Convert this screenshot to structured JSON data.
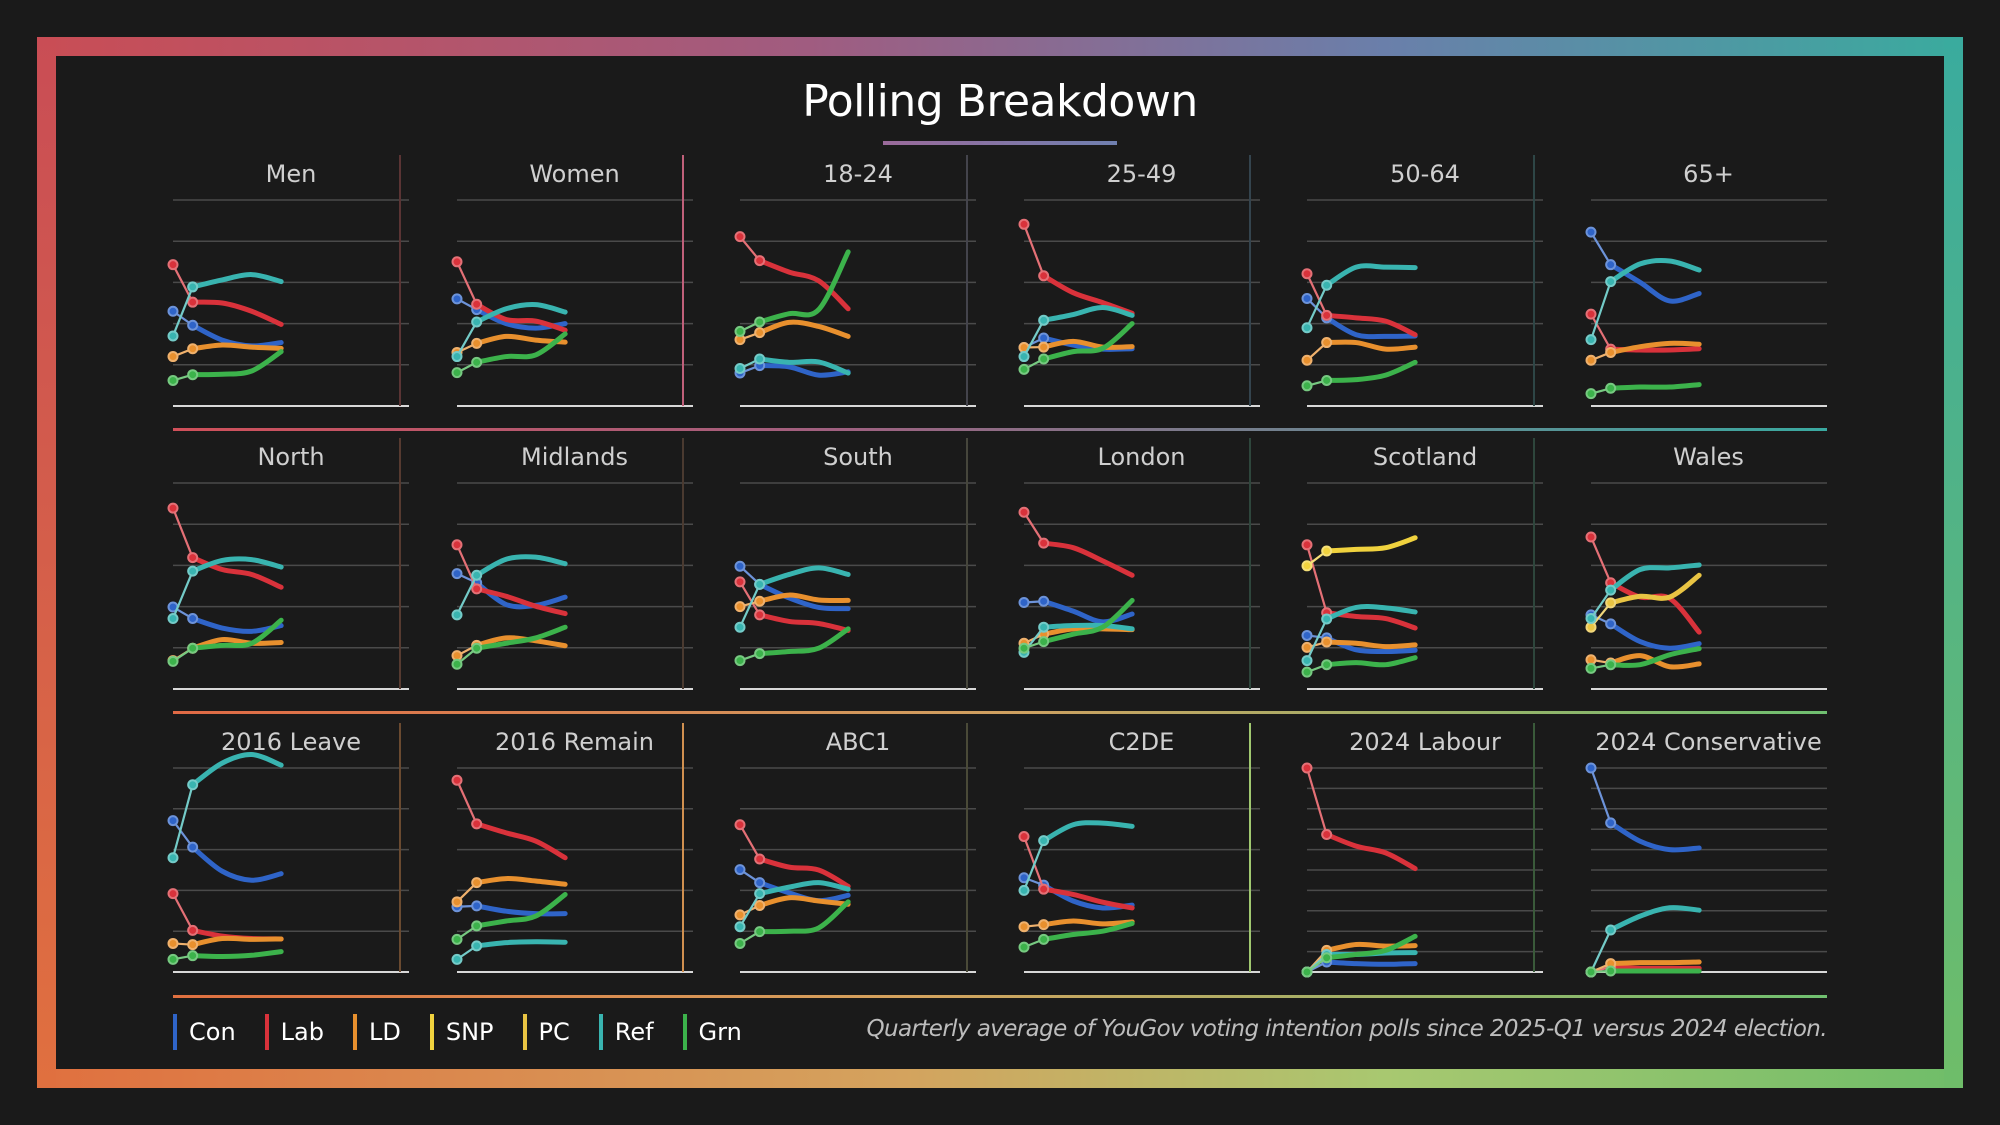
{
  "title": "Polling Breakdown",
  "note": "Quarterly average of YouGov voting intention polls since 2025-Q1 versus 2024 election.",
  "legend": [
    {
      "label": "Con",
      "color": "#2f64c8"
    },
    {
      "label": "Lab",
      "color": "#d9323b"
    },
    {
      "label": "LD",
      "color": "#e8902e"
    },
    {
      "label": "SNP",
      "color": "#f0d23e"
    },
    {
      "label": "PC",
      "color": "#e9c443"
    },
    {
      "label": "Ref",
      "color": "#39b4b0"
    },
    {
      "label": "Grn",
      "color": "#3cb24b"
    }
  ],
  "chart_data": {
    "type": "line",
    "x": [
      0,
      1,
      2.5,
      4,
      5.5
    ],
    "xlim": [
      0,
      12
    ],
    "grid": true,
    "legend_position": "bottom-left",
    "panels": [
      {
        "title": "Men",
        "ylim": [
          0,
          50
        ],
        "series": {
          "Con": [
            23,
            19.6,
            16,
            14.6,
            15.4
          ],
          "Lab": [
            34.3,
            25.2,
            25,
            23,
            19.8
          ],
          "LD": [
            12,
            13.9,
            14.8,
            14.3,
            14
          ],
          "Ref": [
            17,
            28.9,
            30.6,
            31.9,
            30.2
          ],
          "Grn": [
            6.2,
            7.6,
            7.7,
            8.5,
            13.2
          ]
        }
      },
      {
        "title": "Women",
        "ylim": [
          0,
          50
        ],
        "series": {
          "Con": [
            26,
            23.4,
            20,
            18.9,
            20
          ],
          "Lab": [
            35,
            24.7,
            21,
            20.6,
            18.4
          ],
          "LD": [
            13,
            15.2,
            16.9,
            16,
            15.5
          ],
          "Ref": [
            12,
            20.4,
            23.6,
            24.6,
            22.8
          ],
          "Grn": [
            8.1,
            10.6,
            12,
            12.4,
            17.5
          ]
        }
      },
      {
        "title": "18-24",
        "ylim": [
          0,
          50
        ],
        "series": {
          "Con": [
            8,
            9.8,
            9.5,
            7.5,
            8.3
          ],
          "Lab": [
            41.1,
            35.3,
            32.5,
            30.4,
            23.6
          ],
          "LD": [
            16.1,
            17.8,
            20.3,
            19.3,
            16.9
          ],
          "Ref": [
            9.1,
            11.4,
            10.6,
            10.7,
            8
          ],
          "Grn": [
            18.1,
            20.4,
            22.4,
            23.4,
            37.4
          ]
        }
      },
      {
        "title": "25-49",
        "ylim": [
          0,
          50
        ],
        "series": {
          "Con": [
            14.2,
            16.5,
            14.8,
            13.8,
            13.9
          ],
          "Lab": [
            44.1,
            31.6,
            27.5,
            25.1,
            22.5
          ],
          "LD": [
            14.2,
            14.3,
            15.7,
            14.3,
            14.4
          ],
          "Ref": [
            12,
            20.8,
            22.2,
            23.9,
            22
          ],
          "Grn": [
            8.9,
            11.4,
            13.2,
            14,
            20
          ]
        }
      },
      {
        "title": "50-64",
        "ylim": [
          0,
          50
        ],
        "series": {
          "Con": [
            26.1,
            21.4,
            17.3,
            16.9,
            17
          ],
          "Lab": [
            32.1,
            22,
            21.4,
            20.6,
            17.3
          ],
          "LD": [
            11.1,
            15.4,
            15.4,
            13.8,
            14.3
          ],
          "Ref": [
            19,
            29.3,
            33.7,
            33.7,
            33.6
          ],
          "Grn": [
            4.9,
            6.2,
            6.4,
            7.5,
            10.6
          ]
        }
      },
      {
        "title": "65+",
        "ylim": [
          0,
          50
        ],
        "series": {
          "Con": [
            42.2,
            34.3,
            30,
            25.5,
            27.3
          ],
          "Lab": [
            22.3,
            13.8,
            13.6,
            13.6,
            13.9
          ],
          "LD": [
            11.1,
            13,
            14.4,
            15.2,
            15
          ],
          "Ref": [
            16.1,
            30.2,
            34.5,
            35.2,
            33
          ],
          "Grn": [
            3,
            4.3,
            4.6,
            4.6,
            5.2
          ]
        }
      },
      {
        "title": "North",
        "ylim": [
          0,
          50
        ],
        "series": {
          "Con": [
            19.9,
            17.1,
            14.8,
            14,
            15.4
          ],
          "Lab": [
            43.9,
            31.9,
            29,
            27.8,
            24.7
          ],
          "LD": [
            6.9,
            9.9,
            12,
            11.1,
            11.3
          ],
          "Ref": [
            17.1,
            28.6,
            31.2,
            31.4,
            29.6
          ],
          "Grn": [
            6.7,
            9.9,
            10.6,
            11.1,
            16.7
          ]
        }
      },
      {
        "title": "Midlands",
        "ylim": [
          0,
          50
        ],
        "series": {
          "Con": [
            28,
            25.8,
            20.5,
            20.3,
            22.3
          ],
          "Lab": [
            35,
            24.3,
            22.5,
            20.1,
            18.3
          ],
          "LD": [
            8.1,
            10.6,
            12.4,
            11.7,
            10.5
          ],
          "Ref": [
            18,
            27.6,
            31.5,
            32,
            30.4
          ],
          "Grn": [
            6,
            9.9,
            11.1,
            12.4,
            15
          ]
        }
      },
      {
        "title": "South",
        "ylim": [
          0,
          50
        ],
        "series": {
          "Con": [
            29.8,
            25.4,
            22.1,
            19.8,
            19.5
          ],
          "Lab": [
            26,
            18,
            16.4,
            15.9,
            14.2
          ],
          "LD": [
            20,
            21.3,
            22.8,
            21.6,
            21.5
          ],
          "Ref": [
            15,
            25.4,
            27.8,
            29.4,
            27.8
          ],
          "Grn": [
            6.9,
            8.6,
            9.1,
            9.9,
            14.6
          ]
        }
      },
      {
        "title": "London",
        "ylim": [
          0,
          50
        ],
        "series": {
          "Con": [
            21,
            21.3,
            18.9,
            16.3,
            18.2
          ],
          "Lab": [
            42.9,
            35.4,
            34.3,
            31.1,
            27.6
          ],
          "LD": [
            11.1,
            13.3,
            14.6,
            14.6,
            14.4
          ],
          "Ref": [
            8.9,
            15,
            15.4,
            15.4,
            14.6
          ],
          "Grn": [
            9.9,
            11.5,
            13.3,
            15,
            21.5
          ]
        }
      },
      {
        "title": "Scotland",
        "ylim": [
          0,
          50
        ],
        "series": {
          "Con": [
            13,
            12.4,
            9.5,
            9.1,
            9.4
          ],
          "Lab": [
            35,
            18.5,
            17.6,
            17.1,
            14.8
          ],
          "LD": [
            10.1,
            11.4,
            11.1,
            10.3,
            10.7
          ],
          "SNP": [
            29.9,
            33.5,
            33.9,
            34.3,
            36.7
          ],
          "Ref": [
            6.9,
            17,
            19.8,
            19.7,
            18.7
          ],
          "Grn": [
            4.1,
            5.9,
            6.4,
            5.9,
            7.6
          ]
        }
      },
      {
        "title": "Wales",
        "ylim": [
          0,
          50
        ],
        "series": {
          "Con": [
            18,
            15.8,
            11.5,
            9.9,
            11
          ],
          "Lab": [
            36.9,
            25.8,
            22.3,
            22,
            13.8
          ],
          "LD": [
            7.1,
            6.3,
            8.1,
            5.4,
            6.1
          ],
          "PC": [
            15,
            20.9,
            22.5,
            22.3,
            27.6
          ],
          "Ref": [
            17.1,
            24,
            29,
            29.4,
            30.1
          ],
          "Grn": [
            5,
            5.9,
            5.9,
            8.3,
            9.8
          ]
        }
      },
      {
        "title": "2016 Leave",
        "ylim": [
          0,
          50
        ],
        "series": {
          "Con": [
            37.1,
            30.6,
            24.7,
            22.5,
            24.1
          ],
          "Lab": [
            19.2,
            10.2,
            8.8,
            8.2,
            8.1
          ],
          "LD": [
            7,
            6.7,
            8.2,
            8,
            8.1
          ],
          "Ref": [
            28,
            45.9,
            51.2,
            53.3,
            50.7
          ],
          "Grn": [
            3.1,
            4,
            3.8,
            4.1,
            5
          ]
        }
      },
      {
        "title": "2016 Remain",
        "ylim": [
          0,
          50
        ],
        "series": {
          "Con": [
            16,
            16.2,
            14.9,
            14.3,
            14.3
          ],
          "Lab": [
            47,
            36.3,
            34.1,
            32.1,
            28
          ],
          "LD": [
            17.2,
            21.9,
            22.9,
            22.3,
            21.5
          ],
          "Ref": [
            3.1,
            6.4,
            7.2,
            7.4,
            7.3
          ],
          "Grn": [
            8,
            11.3,
            12.5,
            13.7,
            19
          ]
        }
      },
      {
        "title": "ABC1",
        "ylim": [
          0,
          50
        ],
        "series": {
          "Con": [
            25.1,
            21.9,
            19.4,
            17.5,
            18.8
          ],
          "Lab": [
            36.1,
            27.7,
            25.7,
            25,
            21
          ],
          "LD": [
            14,
            16.3,
            18.2,
            17.4,
            16.6
          ],
          "Ref": [
            11.1,
            19.2,
            20.8,
            21.9,
            20.3
          ],
          "Grn": [
            7,
            9.9,
            10,
            10.8,
            17.2
          ]
        }
      },
      {
        "title": "C2DE",
        "ylim": [
          0,
          50
        ],
        "series": {
          "Con": [
            23.1,
            21.3,
            17.4,
            15.7,
            16.4
          ],
          "Lab": [
            33.2,
            20.3,
            19,
            17.1,
            15.7
          ],
          "LD": [
            11.1,
            11.6,
            12.5,
            11.8,
            12.3
          ],
          "Ref": [
            20,
            32.2,
            36.1,
            36.5,
            35.7
          ],
          "Grn": [
            6.1,
            8,
            9.2,
            10,
            11.9
          ]
        }
      },
      {
        "title": "2024 Labour",
        "ylim": [
          0,
          100
        ],
        "series": {
          "Con": [
            0,
            4.9,
            4.1,
            3.8,
            4.1
          ],
          "Lab": [
            100,
            67.4,
            61.7,
            58.4,
            50.7
          ],
          "LD": [
            0,
            10.6,
            13.5,
            12.7,
            12.9
          ],
          "Ref": [
            0,
            8.6,
            8.6,
            9.3,
            9.5
          ],
          "Grn": [
            0,
            7,
            8.6,
            10.6,
            17.5
          ]
        }
      },
      {
        "title": "2024 Conservative",
        "ylim": [
          0,
          100
        ],
        "series": {
          "Con": [
            100,
            73.1,
            64.1,
            60,
            60.8
          ],
          "Lab": [
            0,
            2.4,
            1.8,
            1.8,
            1.8
          ],
          "LD": [
            0,
            4.1,
            4.6,
            4.6,
            4.9
          ],
          "Ref": [
            0,
            20.6,
            27.4,
            31.5,
            30.3
          ],
          "Grn": [
            0,
            0.5,
            0.5,
            0.5,
            0.5
          ]
        }
      }
    ]
  }
}
